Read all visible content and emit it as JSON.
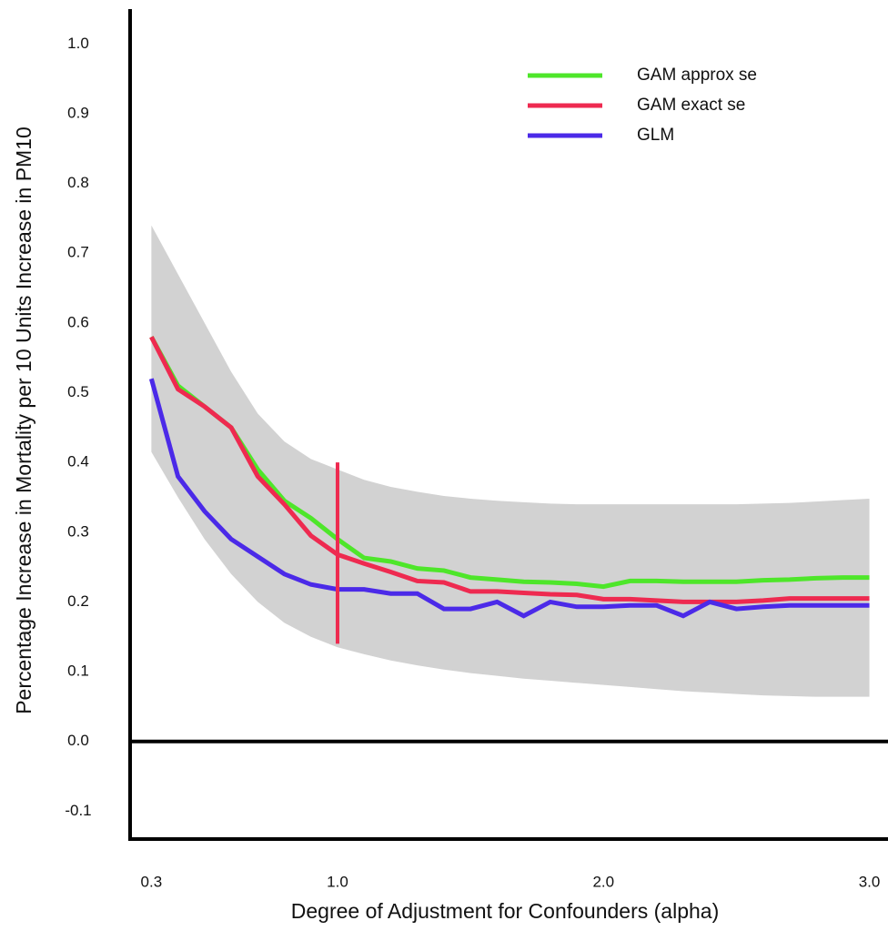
{
  "chart_data": {
    "type": "line",
    "x_label": "Degree of Adjustment for Confounders (alpha)",
    "y_label": "Percentage Increase in Mortality per 10 Units Increase in PM10",
    "x": [
      0.3,
      0.4,
      0.5,
      0.6,
      0.7,
      0.8,
      0.9,
      1.0,
      1.1,
      1.2,
      1.3,
      1.4,
      1.5,
      1.6,
      1.7,
      1.8,
      1.9,
      2.0,
      2.1,
      2.2,
      2.3,
      2.4,
      2.5,
      2.6,
      2.7,
      2.8,
      2.9,
      3.0
    ],
    "series": [
      {
        "name": "GAM approx se",
        "color": "#4ee62a",
        "values": [
          0.58,
          0.51,
          0.48,
          0.45,
          0.39,
          0.345,
          0.32,
          0.29,
          0.263,
          0.258,
          0.248,
          0.245,
          0.235,
          0.232,
          0.229,
          0.228,
          0.226,
          0.222,
          0.23,
          0.23,
          0.229,
          0.229,
          0.229,
          0.231,
          0.232,
          0.234,
          0.235,
          0.235
        ]
      },
      {
        "name": "GAM exact se",
        "color": "#ee2a50",
        "values": [
          0.58,
          0.505,
          0.48,
          0.45,
          0.38,
          0.34,
          0.295,
          0.268,
          0.255,
          0.243,
          0.23,
          0.228,
          0.215,
          0.215,
          0.213,
          0.211,
          0.21,
          0.204,
          0.204,
          0.202,
          0.2,
          0.2,
          0.2,
          0.202,
          0.205,
          0.205,
          0.205,
          0.205
        ]
      },
      {
        "name": "GLM",
        "color": "#4b2ae8",
        "values": [
          0.52,
          0.38,
          0.33,
          0.29,
          0.265,
          0.24,
          0.225,
          0.218,
          0.218,
          0.212,
          0.212,
          0.19,
          0.19,
          0.2,
          0.18,
          0.2,
          0.193,
          0.193,
          0.195,
          0.195,
          0.18,
          0.2,
          0.19,
          0.193,
          0.195,
          0.195,
          0.195,
          0.195
        ]
      }
    ],
    "band": {
      "color": "#d2d2d2",
      "upper": [
        0.74,
        0.67,
        0.6,
        0.53,
        0.47,
        0.43,
        0.405,
        0.39,
        0.375,
        0.365,
        0.358,
        0.352,
        0.348,
        0.345,
        0.343,
        0.341,
        0.34,
        0.34,
        0.34,
        0.34,
        0.34,
        0.34,
        0.34,
        0.341,
        0.342,
        0.344,
        0.346,
        0.348
      ],
      "lower": [
        0.415,
        0.35,
        0.29,
        0.24,
        0.2,
        0.17,
        0.15,
        0.135,
        0.125,
        0.116,
        0.109,
        0.103,
        0.098,
        0.094,
        0.09,
        0.087,
        0.084,
        0.081,
        0.078,
        0.075,
        0.072,
        0.07,
        0.068,
        0.066,
        0.065,
        0.064,
        0.064,
        0.064
      ]
    },
    "reference_line": {
      "x": 1.0,
      "ymin": 0.14,
      "ymax": 0.4,
      "color": "#ee2a50"
    },
    "xlim": [
      0.22,
      3.07
    ],
    "ylim": [
      -0.14,
      1.05
    ],
    "xticks": [
      0.3,
      {
        "value": 1,
        "label": "1.0"
      },
      {
        "value": 2,
        "label": "2.0"
      },
      {
        "value": 3,
        "label": "3.0"
      }
    ],
    "yticks": [
      -0.1,
      {
        "value": 0,
        "label": "0.0"
      },
      0.1,
      0.2,
      0.3,
      0.4,
      0.5,
      0.6,
      0.7,
      0.8,
      0.9,
      {
        "value": 1,
        "label": "1.0"
      }
    ],
    "legend": "upper right",
    "grid": false
  }
}
